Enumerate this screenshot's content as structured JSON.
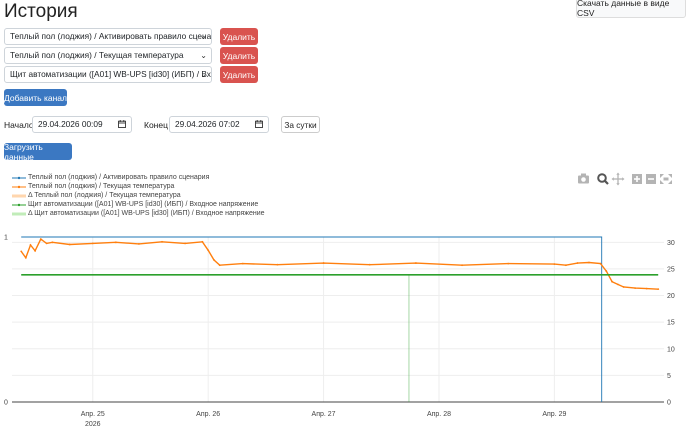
{
  "page": {
    "title": "История",
    "csv_button": "Скачать данные в виде CSV"
  },
  "channels": [
    {
      "label": "Теплый пол (лоджия) / Активировать правило сценария",
      "delete_label": "Удалить"
    },
    {
      "label": "Теплый пол (лоджия) / Текущая температура",
      "delete_label": "Удалить"
    },
    {
      "label": "Щит автоматизации ([A01] WB-UPS [id30] (ИБП) / Входное напряжение",
      "delete_label": "Удалить"
    }
  ],
  "add_channel_label": "Добавить канал",
  "range": {
    "start_label": "Начало",
    "start_value": "29.04.2026 00:09",
    "end_label": "Конец",
    "end_value": "29.04.2026 07:02",
    "day_button": "За сутки"
  },
  "load_button": "Загрузить данные",
  "modebar": [
    "camera-icon",
    "zoom-icon",
    "pan-icon",
    "zoom-in-icon",
    "zoom-out-icon",
    "autoscale-icon"
  ],
  "legend": [
    {
      "label": "Теплый пол (лоджия) / Активировать правило сценария",
      "color": "#1f77b4",
      "style": "line-marker"
    },
    {
      "label": "Теплый пол (лоджия) / Текущая температура",
      "color": "#ff7f0e",
      "style": "line-marker"
    },
    {
      "label": "Δ Теплый пол (лоджия) / Текущая температура",
      "color": "#ffbb78",
      "style": "band"
    },
    {
      "label": "Щит автоматизации ([A01] WB-UPS [id30] (ИБП) / Входное напряжение",
      "color": "#2ca02c",
      "style": "line-marker"
    },
    {
      "label": "Δ Щит автоматизации ([A01] WB-UPS [id30] (ИБП) / Входное напряжение",
      "color": "#98df8a",
      "style": "band"
    }
  ],
  "chart_data": {
    "type": "line",
    "x_ticks": [
      "Апр. 25",
      "Апр. 26",
      "Апр. 27",
      "Апр. 28",
      "Апр. 29"
    ],
    "x_tick_sub": "2026",
    "x_range": [
      24.3,
      29.95
    ],
    "y_left_ticks": [
      "1",
      "0"
    ],
    "y_left_range": [
      0,
      1
    ],
    "y_right_ticks": [
      "30",
      "25",
      "20",
      "15",
      "10",
      "5",
      "0"
    ],
    "y_right_range": [
      0,
      31
    ],
    "grid": true,
    "series": [
      {
        "name": "Теплый пол (лоджия) / Активировать правило сценария",
        "axis": "left",
        "color": "#1f77b4",
        "x": [
          24.38,
          24.55,
          29.41,
          29.41
        ],
        "y": [
          1,
          1,
          1,
          0
        ]
      },
      {
        "name": "Теплый пол (лоджия) / Текущая температура",
        "axis": "right",
        "color": "#ff7f0e",
        "x": [
          24.38,
          24.42,
          24.46,
          24.5,
          24.55,
          24.6,
          24.65,
          24.8,
          25.0,
          25.2,
          25.4,
          25.6,
          25.8,
          25.95,
          26.0,
          26.05,
          26.1,
          26.3,
          26.6,
          27.0,
          27.4,
          27.8,
          28.2,
          28.6,
          29.0,
          29.1,
          29.2,
          29.3,
          29.4,
          29.45,
          29.5,
          29.55,
          29.6,
          29.7,
          29.8,
          29.9
        ],
        "y": [
          28.3,
          27.1,
          29.5,
          28.4,
          30.6,
          29.8,
          30.0,
          29.6,
          29.8,
          30.0,
          29.7,
          30.1,
          29.8,
          30.1,
          28.5,
          26.7,
          25.7,
          26.0,
          25.8,
          26.1,
          25.8,
          26.1,
          25.7,
          26.0,
          25.9,
          25.7,
          26.1,
          26.2,
          26.0,
          24.6,
          22.6,
          22.1,
          21.6,
          21.4,
          21.3,
          21.2
        ]
      },
      {
        "name": "Щит автоматизации ([A01] WB-UPS [id30] (ИБП) / Входное напряжение",
        "axis": "right",
        "color": "#2ca02c",
        "x": [
          24.38,
          29.9
        ],
        "y": [
          23.9,
          23.9
        ]
      }
    ]
  }
}
